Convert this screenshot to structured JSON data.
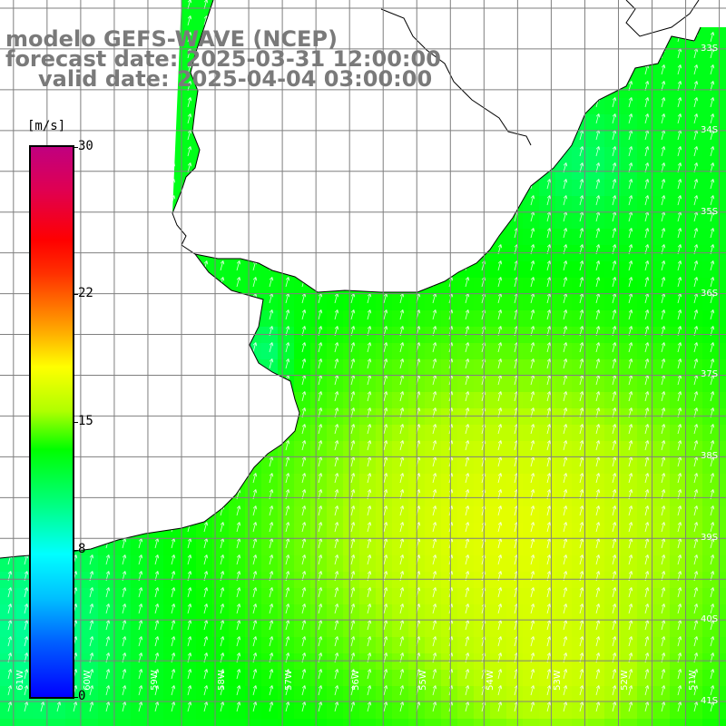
{
  "title": {
    "line1": "modelo GEFS-WAVE (NCEP)",
    "line2": "forecast date: 2025-03-31 12:00:00",
    "line3": "valid date: 2025-04-04 03:00:00"
  },
  "colorbar": {
    "unit": "[m/s]",
    "min": 0,
    "max": 30,
    "ticks": [
      "30",
      "22",
      "15",
      "8",
      "0"
    ],
    "tick_values": [
      30,
      22,
      15,
      8,
      0
    ]
  },
  "axes": {
    "lon_labels": [
      "61W",
      "60W",
      "59W",
      "58W",
      "57W",
      "56W",
      "55W",
      "54W",
      "53W",
      "52W",
      "51W"
    ],
    "lon_values": [
      -61,
      -60,
      -59,
      -58,
      -57,
      -56,
      -55,
      -54,
      -53,
      -52,
      -51
    ],
    "lat_labels": [
      "33S",
      "34S",
      "35S",
      "36S",
      "37S",
      "38S",
      "39S",
      "40S",
      "41S"
    ],
    "lat_values": [
      -33,
      -34,
      -35,
      -36,
      -37,
      -38,
      -39,
      -40,
      -41
    ]
  },
  "colors": {
    "land": "#ffffff",
    "coast": "#000000",
    "grid": "#7f7f7f",
    "arrow": "#ffffff",
    "title": "#7a7a7a"
  },
  "field": {
    "variable": "wind speed",
    "unit": "m/s",
    "typical_range": [
      9,
      17
    ],
    "arrow_direction": "toward NNE"
  }
}
